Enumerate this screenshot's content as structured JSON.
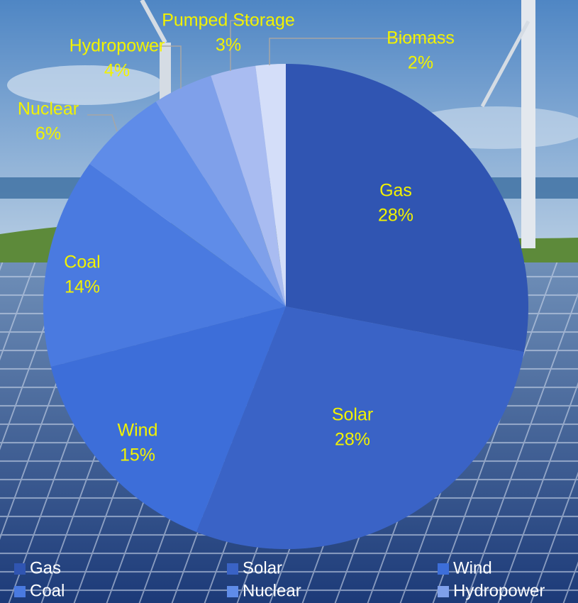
{
  "chart_data": {
    "type": "pie",
    "categories": [
      "Gas",
      "Solar",
      "Wind",
      "Coal",
      "Nuclear",
      "Hydropower",
      "Pumped Storage",
      "Biomass"
    ],
    "values": [
      28,
      28,
      15,
      14,
      6,
      4,
      3,
      2
    ],
    "value_labels": [
      "28%",
      "28%",
      "15%",
      "14%",
      "6%",
      "4%",
      "3%",
      "2%"
    ],
    "colors": [
      "#3055b2",
      "#3a63c6",
      "#3d6ed9",
      "#4a7ae0",
      "#5f8ce8",
      "#7fa0ea",
      "#a9bcf1",
      "#d4def9"
    ],
    "legend": "bottom"
  }
}
